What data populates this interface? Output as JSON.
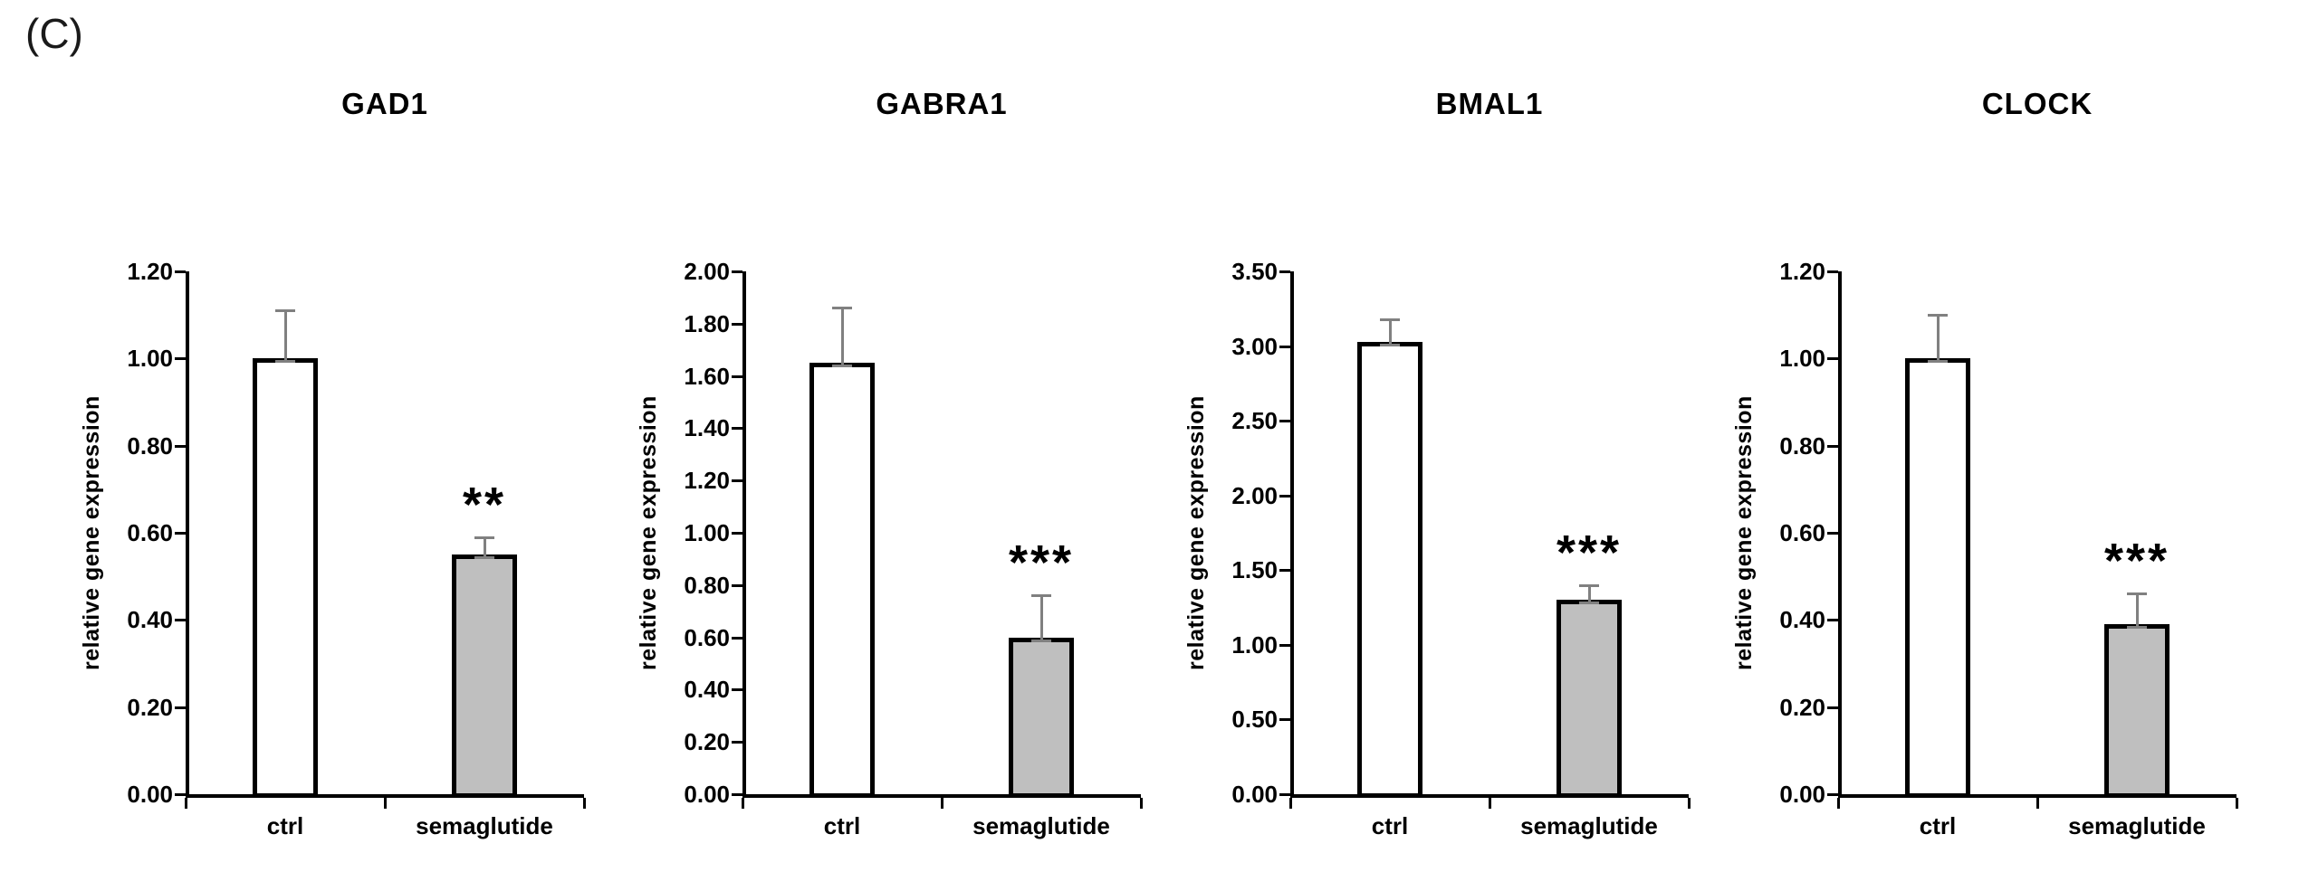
{
  "panel_label": "(C)",
  "figure": {
    "background": "#FFFFFF",
    "bar_border_color": "#000000",
    "error_bar_color": "#808080",
    "control_fill": "#FFFFFF",
    "treatment_fill": "#BFBFBF"
  },
  "chart_data": [
    {
      "type": "bar",
      "title": "GAD1",
      "ylabel": "relative gene expression",
      "xlabel": "",
      "categories": [
        "ctrl",
        "semaglutide"
      ],
      "values": [
        1.0,
        0.55
      ],
      "errors": [
        0.11,
        0.04
      ],
      "significance": [
        "",
        "**"
      ],
      "ylim": [
        0,
        1.2
      ],
      "yticks": [
        0,
        0.2,
        0.4,
        0.6,
        0.8,
        1.0,
        1.2
      ],
      "ytick_labels": [
        "0.00",
        "0.20",
        "0.40",
        "0.60",
        "0.80",
        "1.00",
        "1.20"
      ],
      "bar_fills": [
        "#FFFFFF",
        "#BFBFBF"
      ],
      "grid": false,
      "legend": "none"
    },
    {
      "type": "bar",
      "title": "GABRA1",
      "ylabel": "relative gene expression",
      "xlabel": "",
      "categories": [
        "ctrl",
        "semaglutide"
      ],
      "values": [
        1.65,
        0.6
      ],
      "errors": [
        0.21,
        0.16
      ],
      "significance": [
        "",
        "***"
      ],
      "ylim": [
        0,
        2.0
      ],
      "yticks": [
        0,
        0.2,
        0.4,
        0.6,
        0.8,
        1.0,
        1.2,
        1.4,
        1.6,
        1.8,
        2.0
      ],
      "ytick_labels": [
        "0.00",
        "0.20",
        "0.40",
        "0.60",
        "0.80",
        "1.00",
        "1.20",
        "1.40",
        "1.60",
        "1.80",
        "2.00"
      ],
      "bar_fills": [
        "#FFFFFF",
        "#BFBFBF"
      ],
      "grid": false,
      "legend": "none"
    },
    {
      "type": "bar",
      "title": "BMAL1",
      "ylabel": "relative gene expression",
      "xlabel": "",
      "categories": [
        "ctrl",
        "semaglutide"
      ],
      "values": [
        3.03,
        1.3
      ],
      "errors": [
        0.15,
        0.1
      ],
      "significance": [
        "",
        "***"
      ],
      "ylim": [
        0,
        3.5
      ],
      "yticks": [
        0,
        0.5,
        1.0,
        1.5,
        2.0,
        2.5,
        3.0,
        3.5
      ],
      "ytick_labels": [
        "0.00",
        "0.50",
        "1.00",
        "1.50",
        "2.00",
        "2.50",
        "3.00",
        "3.50"
      ],
      "bar_fills": [
        "#FFFFFF",
        "#BFBFBF"
      ],
      "grid": false,
      "legend": "none"
    },
    {
      "type": "bar",
      "title": "CLOCK",
      "ylabel": "relative gene expression",
      "xlabel": "",
      "categories": [
        "ctrl",
        "semaglutide"
      ],
      "values": [
        1.0,
        0.39
      ],
      "errors": [
        0.1,
        0.07
      ],
      "significance": [
        "",
        "***"
      ],
      "ylim": [
        0,
        1.2
      ],
      "yticks": [
        0,
        0.2,
        0.4,
        0.6,
        0.8,
        1.0,
        1.2
      ],
      "ytick_labels": [
        "0.00",
        "0.20",
        "0.40",
        "0.60",
        "0.80",
        "1.00",
        "1.20"
      ],
      "bar_fills": [
        "#FFFFFF",
        "#BFBFBF"
      ],
      "grid": false,
      "legend": "none"
    }
  ]
}
